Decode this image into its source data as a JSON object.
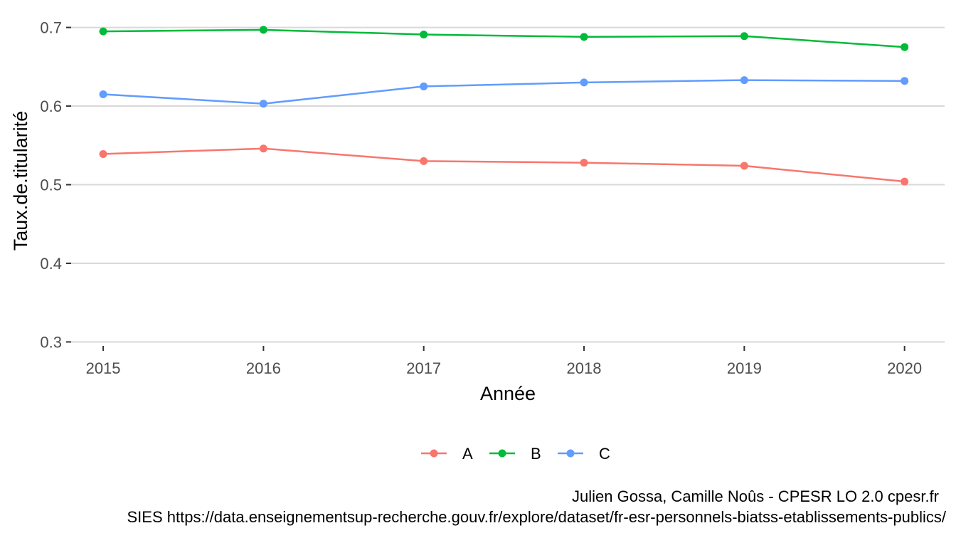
{
  "chart_data": {
    "type": "line",
    "title": "",
    "xlabel": "Année",
    "ylabel": "Taux.de.titularité",
    "x": [
      2015,
      2016,
      2017,
      2018,
      2019,
      2020
    ],
    "x_tick_labels": [
      "2015",
      "2016",
      "2017",
      "2018",
      "2019",
      "2020"
    ],
    "y_ticks": [
      0.3,
      0.4,
      0.5,
      0.6,
      0.7
    ],
    "y_tick_labels": [
      "0.3",
      "0.4",
      "0.5",
      "0.6",
      "0.7"
    ],
    "xlim": [
      2014.8,
      2020.25
    ],
    "ylim": [
      0.295,
      0.715
    ],
    "grid": "horizontal",
    "legend_position": "bottom",
    "series": [
      {
        "name": "A",
        "color": "#F8766D",
        "values": [
          0.539,
          0.546,
          0.53,
          0.528,
          0.524,
          0.504
        ]
      },
      {
        "name": "B",
        "color": "#00BA38",
        "values": [
          0.695,
          0.697,
          0.691,
          0.688,
          0.689,
          0.675
        ]
      },
      {
        "name": "C",
        "color": "#619CFF",
        "values": [
          0.615,
          0.603,
          0.625,
          0.63,
          0.633,
          0.632
        ]
      }
    ],
    "caption_lines": [
      "Julien Gossa, Camille Noûs - CPESR LO 2.0 cpesr.fr",
      "SIES https://data.enseignementsup-recherche.gouv.fr/explore/dataset/fr-esr-personnels-biatss-etablissements-publics/"
    ]
  }
}
